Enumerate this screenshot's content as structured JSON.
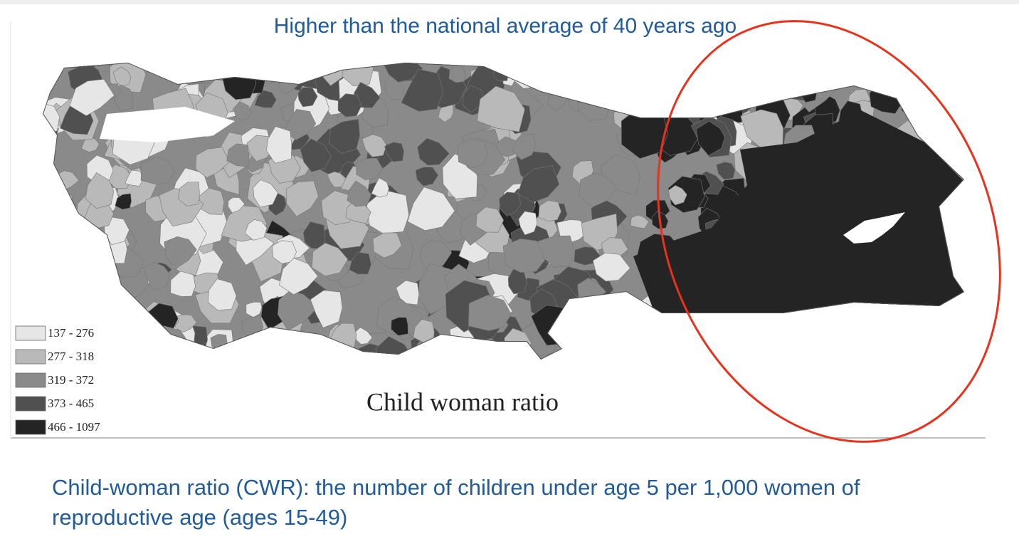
{
  "title": "Higher than the national average of 40 years ago",
  "map": {
    "title": "Child woman ratio",
    "legend": [
      {
        "label": "137 - 276",
        "color": "#e6e6e6"
      },
      {
        "label": "277 - 318",
        "color": "#b9b9b9"
      },
      {
        "label": "319 - 372",
        "color": "#8a8a8a"
      },
      {
        "label": "373 - 465",
        "color": "#505050"
      },
      {
        "label": "466 - 1097",
        "color": "#242424"
      }
    ]
  },
  "caption": "Child-woman ratio (CWR): the number of children under age 5 per 1,000 women of reproductive age (ages 15-49)"
}
